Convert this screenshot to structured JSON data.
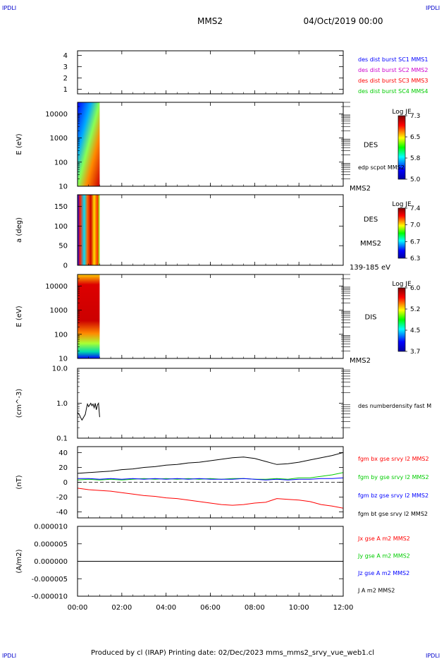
{
  "header": {
    "corner_left": "IPDLI",
    "corner_right": "IPDLI",
    "spacecraft": "MMS2",
    "date": "04/Oct/2019 00:00",
    "footer_corner_left": "IPDLI",
    "footer_corner_right": "IPDLI"
  },
  "footer": {
    "text": "Produced by cl (IRAP)   Printing date: 02/Dec/2023   mms_mms2_srvy_vue_web1.cl"
  },
  "colors": {
    "mms1": "#0000ff",
    "mms2": "#cc00cc",
    "mms3": "#ff0000",
    "mms4": "#00cc00",
    "bx": "#ff0000",
    "by": "#00cc00",
    "bz": "#0000ff",
    "bt": "#000000"
  },
  "chart_data": [
    {
      "type": "line",
      "id": "burst",
      "ylim": [
        0.6,
        4.4
      ],
      "yticks": [
        "4",
        "3",
        "2",
        "1"
      ],
      "ytick_values": [
        4,
        3,
        2,
        1
      ],
      "legend": [
        {
          "label": "des dist burst SC1 MMS1",
          "color": "#0000ff"
        },
        {
          "label": "des dist burst SC2 MMS2",
          "color": "#cc00cc"
        },
        {
          "label": "des dist burst SC3 MMS3",
          "color": "#ff0000"
        },
        {
          "label": "des dist burst SC4 MMS4",
          "color": "#00cc00"
        }
      ]
    },
    {
      "type": "heatmap",
      "id": "des_energy",
      "ylabel": "E (eV)",
      "scale": "log",
      "ylim": [
        10,
        30000
      ],
      "yticks": [
        "10000",
        "1000",
        "100",
        "10"
      ],
      "ytick_values": [
        10000,
        1000,
        100,
        10
      ],
      "x_extent_hours": [
        0.0,
        1.0
      ],
      "label": "DES",
      "sublabel": "edp scpot MMS2",
      "corner_label": "MMS2",
      "colorbar": {
        "title": "Log JE",
        "ticks": [
          "7.3",
          "6.5",
          "5.8",
          "5.0"
        ],
        "range": [
          5.0,
          7.3
        ]
      }
    },
    {
      "type": "heatmap",
      "id": "des_pitch",
      "ylabel": "a (deg)",
      "ylim": [
        0,
        180
      ],
      "yticks": [
        "150",
        "100",
        "50",
        "0"
      ],
      "ytick_values": [
        150,
        100,
        50,
        0
      ],
      "x_extent_hours": [
        0.0,
        1.0
      ],
      "label": "DES",
      "sublabel": "MMS2",
      "corner_label": "139-185 eV",
      "colorbar": {
        "title": "Log JE",
        "ticks": [
          "7.4",
          "7.0",
          "6.7",
          "6.3"
        ],
        "range": [
          6.3,
          7.4
        ]
      }
    },
    {
      "type": "heatmap",
      "id": "dis_energy",
      "ylabel": "E (eV)",
      "scale": "log",
      "ylim": [
        10,
        30000
      ],
      "yticks": [
        "10000",
        "1000",
        "100",
        "10"
      ],
      "ytick_values": [
        10000,
        1000,
        100,
        10
      ],
      "x_extent_hours": [
        0.0,
        1.0
      ],
      "label": "DIS",
      "corner_label": "MMS2",
      "colorbar": {
        "title": "Log JE",
        "ticks": [
          "6.0",
          "5.2",
          "4.5",
          "3.7"
        ],
        "range": [
          3.7,
          6.0
        ]
      }
    },
    {
      "type": "line",
      "id": "density",
      "ylabel": "(cm^-3)",
      "scale": "log",
      "ylim": [
        0.1,
        10
      ],
      "yticks": [
        "10.0",
        "1.0",
        "0.1"
      ],
      "ytick_values": [
        10,
        1,
        0.1
      ],
      "legend": [
        {
          "label": "des numberdensity fast M",
          "color": "#000000"
        }
      ],
      "x": [
        0.0,
        0.1,
        0.15,
        0.2,
        0.3,
        0.35,
        0.4,
        0.45,
        0.5,
        0.55,
        0.6,
        0.65,
        0.7,
        0.75,
        0.8,
        0.85,
        0.9,
        0.95,
        1.0
      ],
      "values": [
        0.55,
        0.45,
        0.38,
        0.33,
        0.42,
        0.48,
        0.7,
        0.95,
        0.8,
        0.9,
        1.0,
        0.85,
        0.95,
        0.75,
        1.0,
        0.65,
        0.9,
        1.0,
        0.4
      ]
    },
    {
      "type": "line",
      "id": "bfield",
      "ylabel": "(nT)",
      "ylim": [
        -48,
        48
      ],
      "yticks": [
        "40",
        "20",
        "0",
        "-20",
        "-40"
      ],
      "ytick_values": [
        40,
        20,
        0,
        -20,
        -40
      ],
      "zero_line": true,
      "x": [
        0.0,
        0.5,
        1.0,
        1.5,
        2.0,
        2.5,
        3.0,
        3.5,
        4.0,
        4.5,
        5.0,
        5.5,
        6.0,
        6.5,
        7.0,
        7.5,
        8.0,
        8.5,
        9.0,
        9.5,
        10.0,
        10.5,
        11.0,
        11.5,
        12.0
      ],
      "series": [
        {
          "name": "fgm bx gse srvy l2 MMS2",
          "color": "#ff0000",
          "values": [
            -8,
            -10,
            -11,
            -12,
            -14,
            -16,
            -18,
            -19,
            -21,
            -22,
            -24,
            -26,
            -28,
            -30,
            -31,
            -30,
            -28,
            -27,
            -22,
            -23,
            -24,
            -26,
            -30,
            -32,
            -35
          ]
        },
        {
          "name": "fgm by gse srvy l2 MMS2",
          "color": "#00cc00",
          "values": [
            3,
            4,
            3,
            4,
            3,
            4,
            5,
            4,
            5,
            4,
            5,
            4,
            5,
            4,
            5,
            5,
            4,
            4,
            5,
            4,
            6,
            6,
            8,
            10,
            13
          ]
        },
        {
          "name": "fgm bz gse srvy l2 MMS2",
          "color": "#0000ff",
          "values": [
            5,
            5,
            4,
            5,
            4,
            5,
            4,
            5,
            4,
            5,
            4,
            5,
            4,
            4,
            4,
            5,
            4,
            3,
            4,
            3,
            4,
            4,
            5,
            5,
            6
          ]
        },
        {
          "name": "fgm bt gse srvy l2 MMS2",
          "color": "#000000",
          "values": [
            12,
            13,
            14,
            15,
            17,
            18,
            20,
            21,
            23,
            24,
            26,
            27,
            29,
            31,
            33,
            34,
            32,
            28,
            24,
            25,
            27,
            30,
            33,
            36,
            40
          ]
        }
      ]
    },
    {
      "type": "line",
      "id": "current",
      "ylabel": "(A/m2)",
      "ylim": [
        -1e-05,
        1e-05
      ],
      "yticks": [
        "0.000010",
        "0.000005",
        "0.000000",
        "-0.000005",
        "-0.000010"
      ],
      "ytick_values": [
        1e-05,
        5e-06,
        0,
        -5e-06,
        -1e-05
      ],
      "legend": [
        {
          "label": "Jx gse A m2 MMS2",
          "color": "#ff0000"
        },
        {
          "label": "Jy gse A m2 MMS2",
          "color": "#00cc00"
        },
        {
          "label": "Jz gse A m2 MMS2",
          "color": "#0000ff"
        },
        {
          "label": "J A m2 MMS2",
          "color": "#000000"
        }
      ]
    }
  ],
  "xaxis": {
    "ticks": [
      "00:00",
      "02:00",
      "04:00",
      "06:00",
      "08:00",
      "10:00",
      "12:00"
    ],
    "tick_hours": [
      0,
      2,
      4,
      6,
      8,
      10,
      12
    ],
    "range_hours": [
      0,
      12
    ]
  }
}
